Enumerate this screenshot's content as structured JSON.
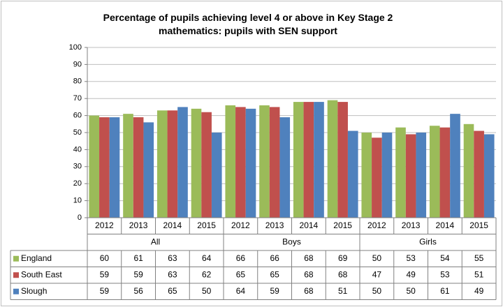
{
  "chart_data": {
    "type": "bar",
    "title": "Percentage of pupils achieving level 4 or above in Key Stage 2 mathematics: pupils with SEN support",
    "categories": [
      "2012",
      "2013",
      "2014",
      "2015",
      "2012",
      "2013",
      "2014",
      "2015",
      "2012",
      "2013",
      "2014",
      "2015"
    ],
    "groups": [
      "All",
      "Boys",
      "Girls"
    ],
    "series": [
      {
        "name": "England",
        "color": "#9bbb59",
        "values": [
          60,
          61,
          63,
          64,
          66,
          66,
          68,
          69,
          50,
          53,
          54,
          55
        ]
      },
      {
        "name": "South East",
        "color": "#c0504d",
        "values": [
          59,
          59,
          63,
          62,
          65,
          65,
          68,
          68,
          47,
          49,
          53,
          51
        ]
      },
      {
        "name": "Slough",
        "color": "#4f81bd",
        "values": [
          59,
          56,
          65,
          50,
          64,
          59,
          68,
          51,
          50,
          50,
          61,
          49
        ]
      }
    ],
    "ylim": [
      0,
      100
    ],
    "yticks": [
      0,
      10,
      20,
      30,
      40,
      50,
      60,
      70,
      80,
      90,
      100
    ],
    "grid": true
  }
}
